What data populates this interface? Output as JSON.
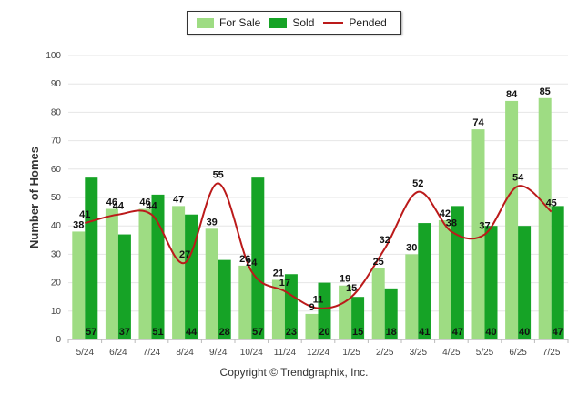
{
  "chart_data": {
    "type": "bar",
    "title": "",
    "xlabel": "",
    "ylabel": "Number of Homes",
    "ylim": [
      0,
      100
    ],
    "yticks": [
      0,
      10,
      20,
      30,
      40,
      50,
      60,
      70,
      80,
      90,
      100
    ],
    "categories": [
      "5/24",
      "6/24",
      "7/24",
      "8/24",
      "9/24",
      "10/24",
      "11/24",
      "12/24",
      "1/25",
      "2/25",
      "3/25",
      "4/25",
      "5/25",
      "6/25",
      "7/25"
    ],
    "series": [
      {
        "name": "For Sale",
        "kind": "bar",
        "color": "#9edc83",
        "values": [
          38,
          46,
          46,
          47,
          39,
          26,
          21,
          9,
          19,
          25,
          30,
          42,
          74,
          84,
          85
        ]
      },
      {
        "name": "Sold",
        "kind": "bar",
        "color": "#16a326",
        "values": [
          57,
          37,
          51,
          44,
          28,
          57,
          23,
          20,
          15,
          18,
          41,
          47,
          40,
          40,
          47
        ]
      },
      {
        "name": "Pended",
        "kind": "line",
        "color": "#bb1a1a",
        "values": [
          41,
          44,
          44,
          27,
          55,
          24,
          17,
          11,
          15,
          32,
          52,
          38,
          37,
          54,
          45
        ]
      }
    ],
    "legend": "top-center",
    "grid": true
  },
  "footer": {
    "copyright": "Copyright © Trendgraphix, Inc."
  }
}
